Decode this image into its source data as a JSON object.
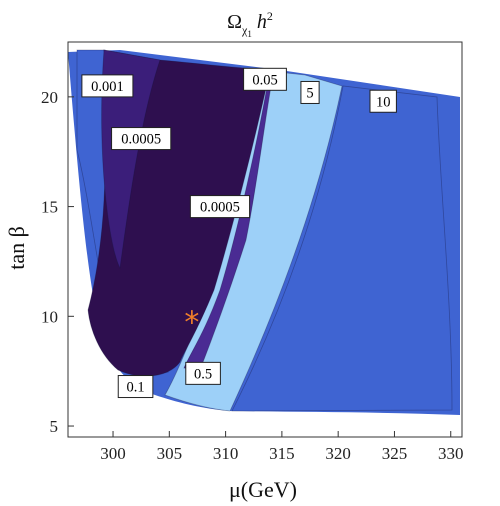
{
  "chart_data": {
    "type": "contour",
    "title": {
      "base": "Ω",
      "subscript": "χ",
      "subsub": "1",
      "tail": "h",
      "sup": "2"
    },
    "xlabel": "μ(GeV)",
    "ylabel": "tan β",
    "xlim": [
      296,
      331
    ],
    "ylim": [
      4.5,
      22.5
    ],
    "xticks": [
      "300",
      "305",
      "310",
      "315",
      "320",
      "325",
      "330"
    ],
    "yticks": [
      "5",
      "10",
      "15",
      "20"
    ],
    "levels": [
      {
        "name": "region-1",
        "color": "#3f64d2",
        "range": "0.001-0.005"
      },
      {
        "name": "region-2",
        "color": "#3b1e7a",
        "range": "0.0005-0.001"
      },
      {
        "name": "region-3",
        "color": "#2e0f4f",
        "range": "below 0.0005"
      },
      {
        "name": "region-4",
        "color": "#4a2b93",
        "range": "0.05-0.1"
      },
      {
        "name": "region-5",
        "color": "#3f80e2",
        "range": "0.5-5"
      },
      {
        "name": "region-6",
        "color": "#9dd0f8",
        "range": "5-10"
      }
    ],
    "contour_labels": [
      {
        "text": "0.001",
        "x": 299.5,
        "y": 20.5
      },
      {
        "text": "0.0005",
        "x": 302.5,
        "y": 18.1
      },
      {
        "text": "0.0005",
        "x": 309.5,
        "y": 15.0
      },
      {
        "text": "0.05",
        "x": 313.5,
        "y": 20.8
      },
      {
        "text": "5",
        "x": 317.5,
        "y": 20.2
      },
      {
        "text": "10",
        "x": 324.0,
        "y": 19.8
      },
      {
        "text": "0.1",
        "x": 302.0,
        "y": 6.8
      },
      {
        "text": "0.5",
        "x": 308.0,
        "y": 7.4
      }
    ],
    "marker": {
      "symbol": "*",
      "x": 307.0,
      "y": 9.8,
      "color": "#f07f2a"
    }
  }
}
